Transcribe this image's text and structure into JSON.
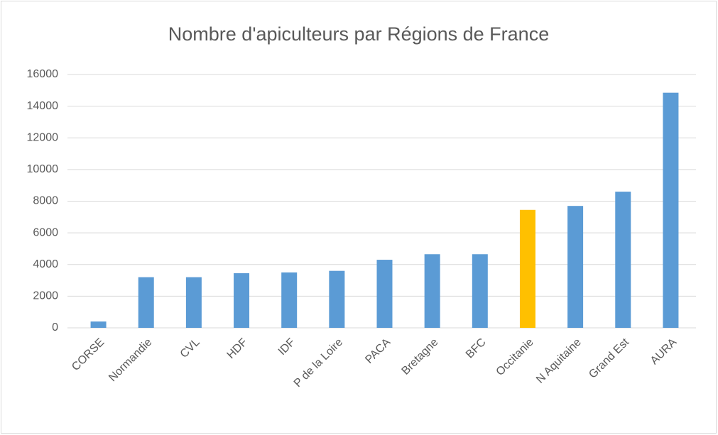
{
  "chart_data": {
    "type": "bar",
    "title": "Nombre d'apiculteurs par Régions de France",
    "categories": [
      "CORSE",
      "Normandie",
      "CVL",
      "HDF",
      "IDF",
      "P de la Loire",
      "PACA",
      "Bretagne",
      "BFC",
      "Occitanie",
      "N Aquitaine",
      "Grand Est",
      "AURA"
    ],
    "values": [
      400,
      3200,
      3200,
      3450,
      3500,
      3600,
      4300,
      4650,
      4650,
      7450,
      7700,
      8600,
      14850
    ],
    "colors": [
      "#5b9bd5",
      "#5b9bd5",
      "#5b9bd5",
      "#5b9bd5",
      "#5b9bd5",
      "#5b9bd5",
      "#5b9bd5",
      "#5b9bd5",
      "#5b9bd5",
      "#ffc000",
      "#5b9bd5",
      "#5b9bd5",
      "#5b9bd5"
    ],
    "ylim": [
      0,
      16000
    ],
    "yticks": [
      0,
      2000,
      4000,
      6000,
      8000,
      10000,
      12000,
      14000,
      16000
    ],
    "grid": true
  }
}
